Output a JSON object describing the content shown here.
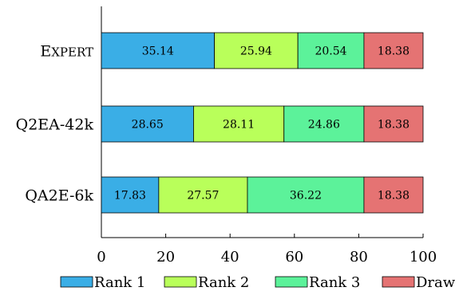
{
  "chart_data": {
    "type": "bar",
    "orientation": "horizontal",
    "stacked": true,
    "categories": [
      "Expert",
      "Q2EA-42k",
      "QA2E-6k"
    ],
    "series": [
      {
        "name": "Rank 1",
        "color": "#3aaee6",
        "values": [
          35.14,
          28.65,
          17.83
        ]
      },
      {
        "name": "Rank 2",
        "color": "#b9ff5a",
        "values": [
          25.94,
          28.11,
          27.57
        ]
      },
      {
        "name": "Rank 3",
        "color": "#5cf29a",
        "values": [
          20.54,
          24.86,
          36.22
        ]
      },
      {
        "name": "Draw",
        "color": "#e57373",
        "values": [
          18.38,
          18.38,
          18.38
        ]
      }
    ],
    "xlim": [
      0,
      100
    ],
    "xticks": [
      0,
      20,
      40,
      60,
      80,
      100
    ],
    "legend_position": "bottom",
    "grid": false
  }
}
